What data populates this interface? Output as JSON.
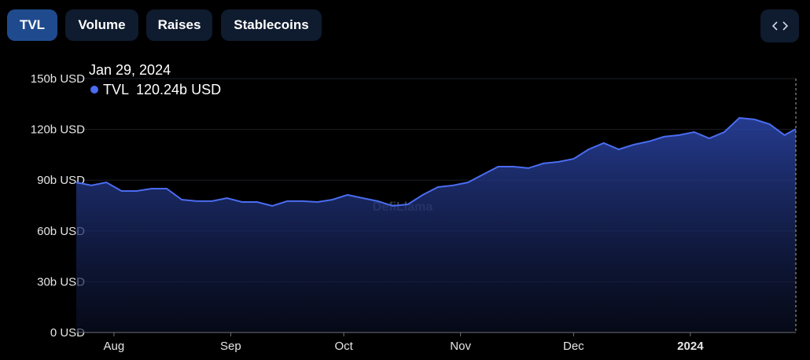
{
  "tabs": [
    "TVL",
    "Volume",
    "Raises",
    "Stablecoins"
  ],
  "watermark": "DefiLlama",
  "tooltip": {
    "date": "Jan 29, 2024",
    "label": "TVL",
    "value": "120.24b USD"
  },
  "chart_data": {
    "type": "line",
    "x": [
      "2023-07-22",
      "2023-07-26",
      "2023-07-30",
      "2023-08-03",
      "2023-08-07",
      "2023-08-11",
      "2023-08-15",
      "2023-08-19",
      "2023-08-23",
      "2023-08-27",
      "2023-08-31",
      "2023-09-04",
      "2023-09-08",
      "2023-09-12",
      "2023-09-16",
      "2023-09-20",
      "2023-09-24",
      "2023-09-28",
      "2023-10-02",
      "2023-10-06",
      "2023-10-10",
      "2023-10-14",
      "2023-10-18",
      "2023-10-22",
      "2023-10-26",
      "2023-10-30",
      "2023-11-03",
      "2023-11-07",
      "2023-11-11",
      "2023-11-15",
      "2023-11-19",
      "2023-11-23",
      "2023-11-27",
      "2023-12-01",
      "2023-12-05",
      "2023-12-09",
      "2023-12-13",
      "2023-12-17",
      "2023-12-21",
      "2023-12-25",
      "2023-12-29",
      "2024-01-02",
      "2024-01-06",
      "2024-01-10",
      "2024-01-14",
      "2024-01-18",
      "2024-01-22",
      "2024-01-26",
      "2024-01-29"
    ],
    "series": [
      {
        "name": "TVL",
        "color": "#4a6cf0",
        "values": [
          88.7,
          86.9,
          88.7,
          83.6,
          83.6,
          85,
          85,
          78.5,
          77.6,
          77.6,
          79.4,
          77.1,
          77.1,
          74.8,
          77.6,
          77.6,
          77.1,
          78.5,
          81.3,
          79.4,
          77.6,
          74.8,
          75.7,
          81.3,
          85.9,
          86.9,
          88.7,
          93.4,
          98,
          98,
          97.1,
          99.9,
          100.8,
          102.6,
          108.2,
          111.9,
          108.2,
          111,
          112.9,
          115.7,
          116.6,
          118.4,
          114.7,
          118.4,
          126.8,
          125.9,
          123.1,
          116.6,
          120.24
        ]
      }
    ],
    "xlim": [
      "2023-07-22",
      "2024-01-29"
    ],
    "xticks": [
      {
        "value": "2023-08-01",
        "label": "Aug"
      },
      {
        "value": "2023-09-01",
        "label": "Sep"
      },
      {
        "value": "2023-10-01",
        "label": "Oct"
      },
      {
        "value": "2023-11-01",
        "label": "Nov"
      },
      {
        "value": "2023-12-01",
        "label": "Dec"
      },
      {
        "value": "2024-01-01",
        "label": "2024"
      }
    ],
    "ylim": [
      0,
      150
    ],
    "yticks": [
      {
        "value": 0,
        "label": "0 USD"
      },
      {
        "value": 30,
        "label": "30b USD"
      },
      {
        "value": 60,
        "label": "60b USD"
      },
      {
        "value": 90,
        "label": "90b USD"
      },
      {
        "value": 120,
        "label": "120b USD"
      },
      {
        "value": 150,
        "label": "150b USD"
      }
    ],
    "grid": true
  }
}
